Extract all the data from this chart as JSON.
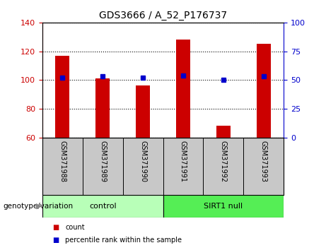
{
  "title": "GDS3666 / A_52_P176737",
  "samples": [
    "GSM371988",
    "GSM371989",
    "GSM371990",
    "GSM371991",
    "GSM371992",
    "GSM371993"
  ],
  "counts": [
    117,
    101,
    96,
    128,
    68,
    125
  ],
  "percentile_ranks": [
    52,
    53,
    52,
    54,
    50,
    53
  ],
  "ylim_left": [
    60,
    140
  ],
  "ylim_right": [
    0,
    100
  ],
  "yticks_left": [
    60,
    80,
    100,
    120,
    140
  ],
  "yticks_right": [
    0,
    25,
    50,
    75,
    100
  ],
  "bar_color": "#cc0000",
  "dot_color": "#0000cc",
  "bar_width": 0.35,
  "group_label": "genotype/variation",
  "legend_items": [
    {
      "label": "count",
      "color": "#cc0000"
    },
    {
      "label": "percentile rank within the sample",
      "color": "#0000cc"
    }
  ],
  "tick_label_color_left": "#cc0000",
  "tick_label_color_right": "#0000cc",
  "plot_bg_color": "#ffffff",
  "label_area_color": "#c8c8c8",
  "group_area_color_control": "#b8ffb8",
  "group_area_color_sirt1": "#55ee55",
  "control_count": 3,
  "sirt1_count": 3
}
